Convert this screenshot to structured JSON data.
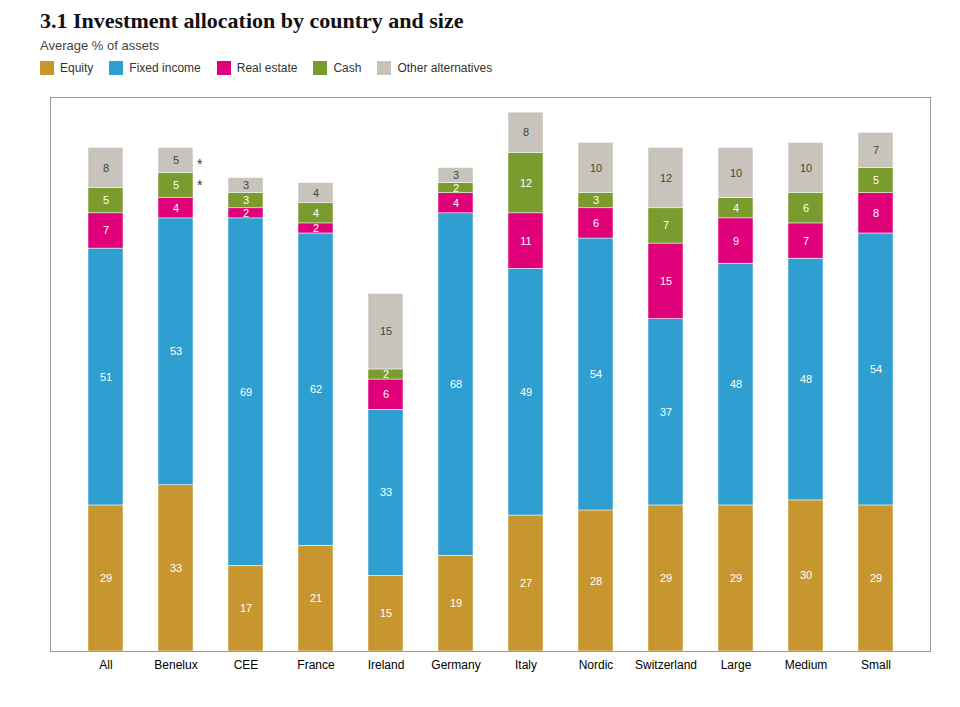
{
  "chart_data": {
    "type": "bar",
    "title": "3.1  Investment allocation by country and size",
    "subtitle": "Average % of assets",
    "categories": [
      "All",
      "Benelux",
      "CEE",
      "France",
      "Ireland",
      "Germany",
      "Italy",
      "Nordic",
      "Switzerland",
      "Large",
      "Medium",
      "Small"
    ],
    "series": [
      {
        "name": "Equity",
        "color": "#C8962E",
        "values": [
          29,
          33,
          17,
          21,
          15,
          19,
          27,
          28,
          29,
          29,
          30,
          29
        ]
      },
      {
        "name": "Fixed income",
        "color": "#2E9FD0",
        "values": [
          51,
          53,
          69,
          62,
          33,
          68,
          49,
          54,
          37,
          48,
          48,
          54
        ]
      },
      {
        "name": "Real estate",
        "color": "#E0007A",
        "values": [
          7,
          4,
          2,
          2,
          6,
          4,
          11,
          6,
          15,
          9,
          7,
          8
        ]
      },
      {
        "name": "Cash",
        "color": "#7A9B2E",
        "values": [
          5,
          5,
          3,
          4,
          2,
          2,
          12,
          3,
          7,
          4,
          6,
          5
        ]
      },
      {
        "name": "Other alternatives",
        "color": "#C8C4BC",
        "values": [
          8,
          5,
          3,
          4,
          15,
          3,
          8,
          10,
          12,
          10,
          10,
          7
        ]
      }
    ],
    "stacked": true,
    "data_labels": true,
    "ylim": [
      0,
      110
    ],
    "tick_labels": "x",
    "grid": false,
    "legend": "top",
    "annotations": [
      {
        "text": "*",
        "category": "Benelux"
      },
      {
        "text": "*",
        "category": "Benelux"
      }
    ]
  }
}
